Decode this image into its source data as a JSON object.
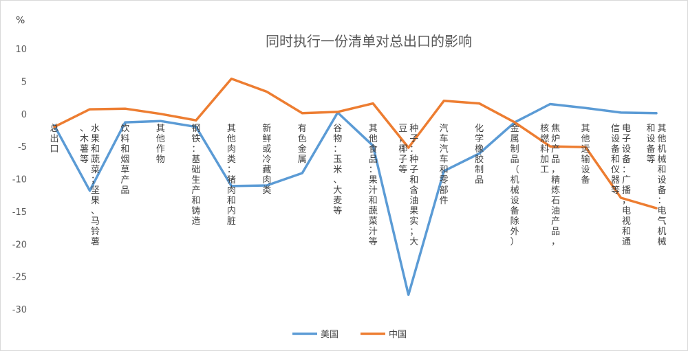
{
  "chart_data": {
    "type": "line",
    "title": "同时执行一份清单对总出口的影响",
    "ylabel": "%",
    "ylim": [
      -30,
      10
    ],
    "yticks": [
      10,
      5,
      0,
      -5,
      -10,
      -15,
      -20,
      -25,
      -30
    ],
    "grid": false,
    "legend_position": "bottom",
    "categories": [
      "总出口",
      "水果和蔬菜；坚果、马铃薯、木薯等",
      "饮料和烟草产品",
      "其他作物",
      "钢铁：基础生产和铸造",
      "其他肉类：猪肉和内脏",
      "新鲜或冷藏肉类",
      "有色金属",
      "谷物：玉米、大麦等",
      "其他食品：果汁和蔬菜汁等",
      "种子：种子和含油果实；大豆，椰子等",
      "汽车汽车和零部件",
      "化学橡胶制品",
      "金属制品（机械设备除外）",
      "焦炉产品，精炼石油产品，核燃料加工",
      "其他运输设备",
      "电子设备：广播，电视和通信设备和仪器等",
      "其他机械和设备：电气机械和设备等"
    ],
    "series": [
      {
        "name": "美国",
        "color": "#5b9bd5",
        "values": [
          -1.8,
          -11.8,
          -1.3,
          -1.1,
          -2.0,
          -11.1,
          -11.0,
          -9.1,
          0.2,
          -4.9,
          -27.8,
          -8.8,
          -6.1,
          -1.3,
          1.5,
          0.9,
          0.2,
          0.1
        ]
      },
      {
        "name": "中国",
        "color": "#ed7d31",
        "values": [
          -2.0,
          0.7,
          0.8,
          0.0,
          -1.0,
          5.4,
          3.4,
          0.1,
          0.3,
          1.6,
          -5.2,
          2.0,
          1.6,
          -1.3,
          -5.0,
          -5.1,
          -12.9,
          -14.5
        ]
      }
    ]
  }
}
